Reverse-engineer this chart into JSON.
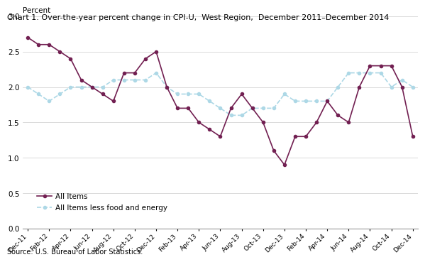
{
  "title": "Chart 1. Over-the-year percent change in CPI-U,  West Region,  December 2011–December 2014",
  "ylabel": "Percent",
  "source": "Source: U.S. Bureau of Labor Statistics.",
  "x_labels": [
    "Dec-11",
    "Feb-12",
    "Apr-12",
    "Jun-12",
    "Aug-12",
    "Oct-12",
    "Dec-12",
    "Feb-13",
    "Apr-13",
    "Jun-13",
    "Aug-13",
    "Oct-13",
    "Dec-13",
    "Feb-14",
    "Apr-14",
    "Jun-14",
    "Aug-14",
    "Oct-14",
    "Dec-14"
  ],
  "all_items_color": "#722052",
  "less_food_energy_color": "#add8e6",
  "ylim": [
    0.0,
    3.0
  ],
  "yticks": [
    0.0,
    0.5,
    1.0,
    1.5,
    2.0,
    2.5,
    3.0
  ],
  "background_color": "#ffffff",
  "all_items_monthly": [
    2.7,
    2.6,
    2.6,
    2.5,
    2.4,
    2.1,
    2.0,
    1.9,
    1.8,
    2.2,
    2.2,
    2.4,
    2.5,
    2.0,
    1.7,
    1.7,
    1.5,
    1.4,
    1.3,
    1.7,
    1.9,
    1.7,
    1.5,
    1.1,
    0.9,
    1.3,
    1.3,
    1.5,
    1.8,
    1.6,
    1.5,
    2.0,
    2.3,
    2.3,
    2.3,
    2.0,
    1.3
  ],
  "less_fe_monthly": [
    2.0,
    1.9,
    1.8,
    1.9,
    2.0,
    2.0,
    2.0,
    2.0,
    2.1,
    2.1,
    2.1,
    2.1,
    2.2,
    2.0,
    1.9,
    1.9,
    1.9,
    1.8,
    1.7,
    1.6,
    1.6,
    1.7,
    1.7,
    1.7,
    1.9,
    1.8,
    1.8,
    1.8,
    1.8,
    2.0,
    2.2,
    2.2,
    2.2,
    2.2,
    2.0,
    2.1,
    2.0
  ]
}
